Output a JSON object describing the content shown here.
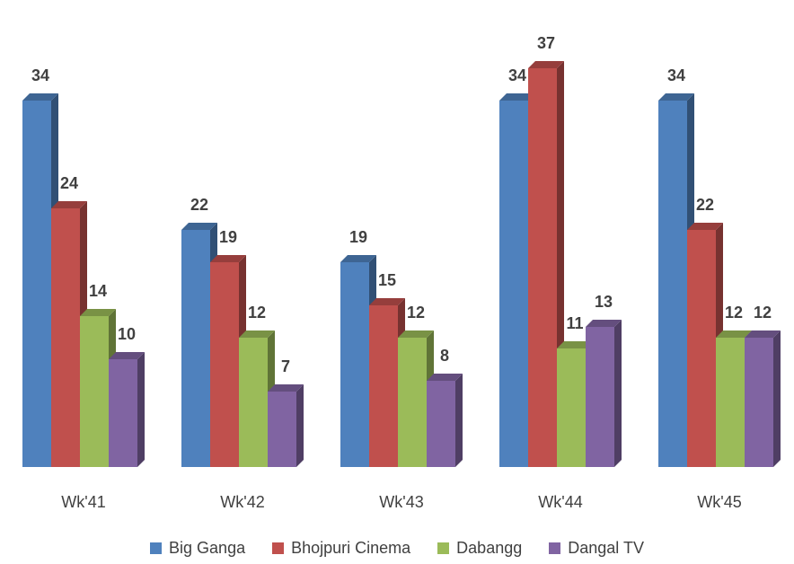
{
  "chart_data": {
    "type": "bar",
    "style": "3d-clustered-column",
    "categories": [
      "Wk'41",
      "Wk'42",
      "Wk'43",
      "Wk'44",
      "Wk'45"
    ],
    "series": [
      {
        "name": "Big Ganga",
        "color": "#4F81BD",
        "values": [
          34,
          22,
          19,
          34,
          34
        ]
      },
      {
        "name": "Bhojpuri Cinema",
        "color": "#C0504D",
        "values": [
          24,
          19,
          15,
          37,
          22
        ]
      },
      {
        "name": "Dabangg",
        "color": "#9BBB59",
        "values": [
          14,
          12,
          12,
          11,
          12
        ]
      },
      {
        "name": "Dangal TV",
        "color": "#8064A2",
        "values": [
          10,
          7,
          8,
          13,
          12
        ]
      }
    ],
    "title": "",
    "xlabel": "",
    "ylabel": "",
    "ylim": [
      0,
      37
    ],
    "grid": false,
    "legend_position": "bottom",
    "data_labels": true
  }
}
